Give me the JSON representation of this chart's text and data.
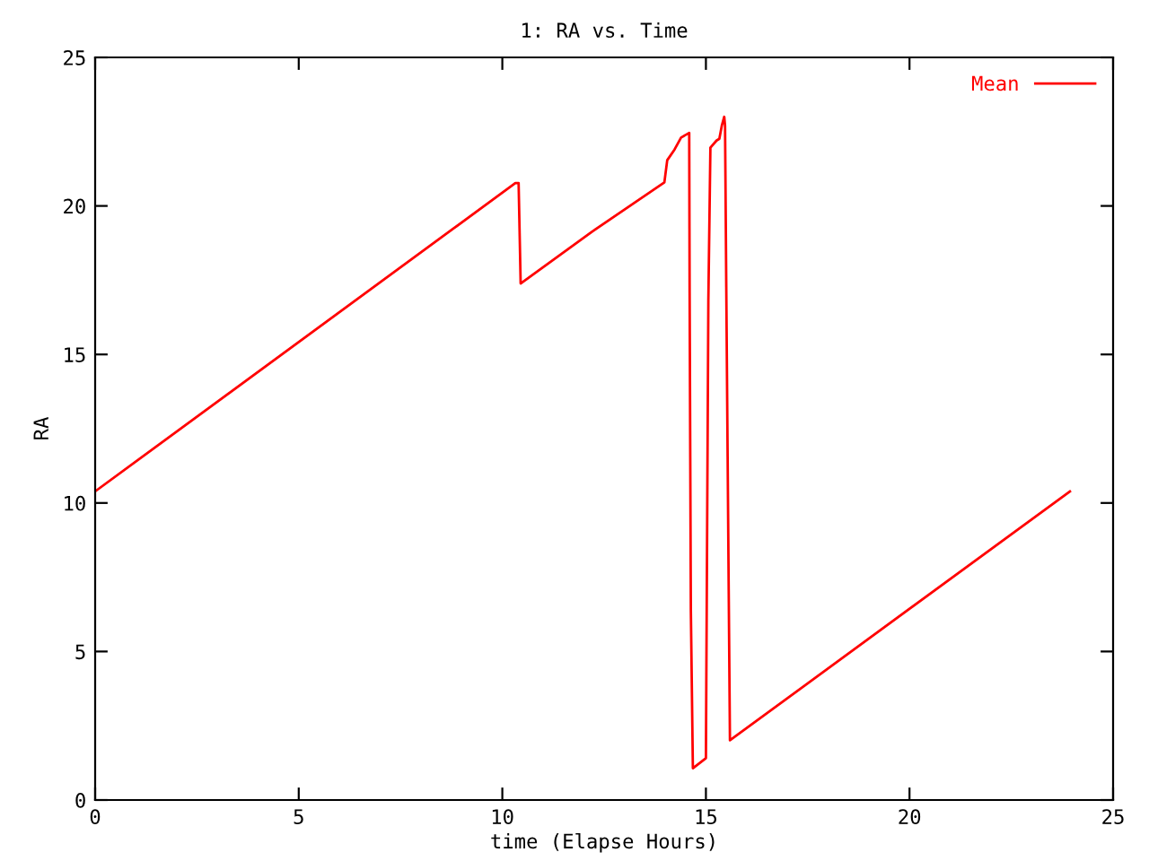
{
  "chart_data": {
    "type": "line",
    "title": "1: RA vs. Time",
    "xlabel": "time (Elapse Hours)",
    "ylabel": "RA",
    "series": [
      {
        "name": "Mean",
        "color": "#ff0000",
        "x": [
          0,
          10.32,
          10.4,
          10.45,
          12.21,
          13.98,
          14.05,
          14.23,
          14.39,
          14.59,
          14.6,
          14.63,
          14.68,
          15.0,
          15.02,
          15.06,
          15.11,
          15.26,
          15.33,
          15.39,
          15.45,
          15.47,
          15.5,
          15.56,
          15.59,
          23.94
        ],
        "values": [
          10.39,
          20.77,
          20.77,
          17.39,
          19.14,
          20.79,
          21.54,
          21.9,
          22.3,
          22.46,
          17.07,
          6.4,
          1.07,
          1.41,
          6.56,
          16.83,
          21.96,
          22.2,
          22.26,
          22.7,
          23.0,
          22.7,
          17.27,
          7.05,
          2.01,
          10.39
        ]
      }
    ],
    "xlim": [
      0,
      25
    ],
    "ylim": [
      0,
      25
    ],
    "xticks": [
      0,
      5,
      10,
      15,
      20,
      25
    ],
    "yticks": [
      0,
      5,
      10,
      15,
      20,
      25
    ],
    "grid": false,
    "legend": "top right",
    "marker": "none",
    "line_style": "solid"
  }
}
